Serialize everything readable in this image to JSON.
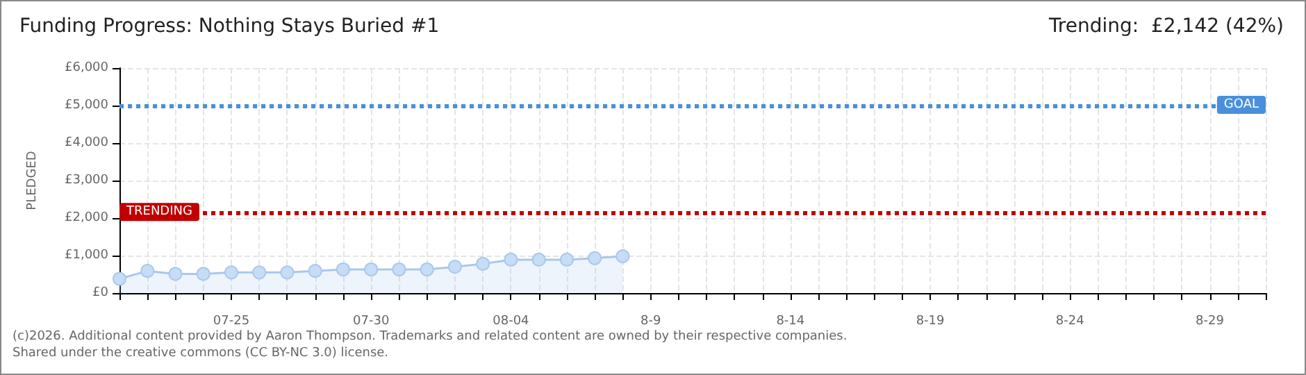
{
  "chart_data": {
    "type": "area",
    "title": "Funding Progress: Nothing Stays Buried #1",
    "subtitle": "Trending:  £2,142 (42%)",
    "ylabel": "PLEDGED",
    "categories": [
      null,
      null,
      null,
      null,
      "07-25",
      null,
      null,
      null,
      null,
      "07-30",
      null,
      null,
      null,
      null,
      "08-04",
      null,
      null,
      null,
      null,
      "8-9",
      null,
      null,
      null,
      null,
      "8-14",
      null,
      null,
      null,
      null,
      "8-19",
      null,
      null,
      null,
      null,
      "8-24",
      null,
      null,
      null,
      null,
      "8-29",
      null,
      null
    ],
    "series": [
      {
        "color": "#a8c8ec",
        "values": [
          380,
          590,
          510,
          510,
          550,
          550,
          550,
          590,
          630,
          630,
          630,
          630,
          700,
          780,
          890,
          890,
          890,
          930,
          980,
          null,
          null,
          null,
          null,
          null,
          null,
          null,
          null,
          null,
          null,
          null,
          null,
          null,
          null,
          null,
          null,
          null,
          null,
          null,
          null,
          null,
          null,
          null
        ]
      }
    ],
    "ylim": [
      0,
      6000
    ],
    "yticks": [
      {
        "value": 0,
        "label": "£0"
      },
      {
        "value": 1000,
        "label": "£1,000"
      },
      {
        "value": 2000,
        "label": "£2,000"
      },
      {
        "value": 3000,
        "label": "£3,000"
      },
      {
        "value": 4000,
        "label": "£4,000"
      },
      {
        "value": 5000,
        "label": "£5,000"
      },
      {
        "value": 6000,
        "label": "£6,000"
      }
    ],
    "ref_lines": [
      {
        "axis": "y",
        "value": 5000,
        "label": "GOAL",
        "color": "#4a8fdb",
        "line_style": "dotted"
      },
      {
        "axis": "y",
        "value": 2142,
        "label": "TRENDING",
        "color": "#c00000",
        "line_style": "dotted"
      }
    ],
    "grid": true,
    "marker": "circle",
    "annotations": [
      "(c)2026. Additional content provided by Aaron Thompson. Trademarks and related content are owned by their respective companies.",
      "Shared under the creative commons (CC BY-NC 3.0) license."
    ]
  }
}
